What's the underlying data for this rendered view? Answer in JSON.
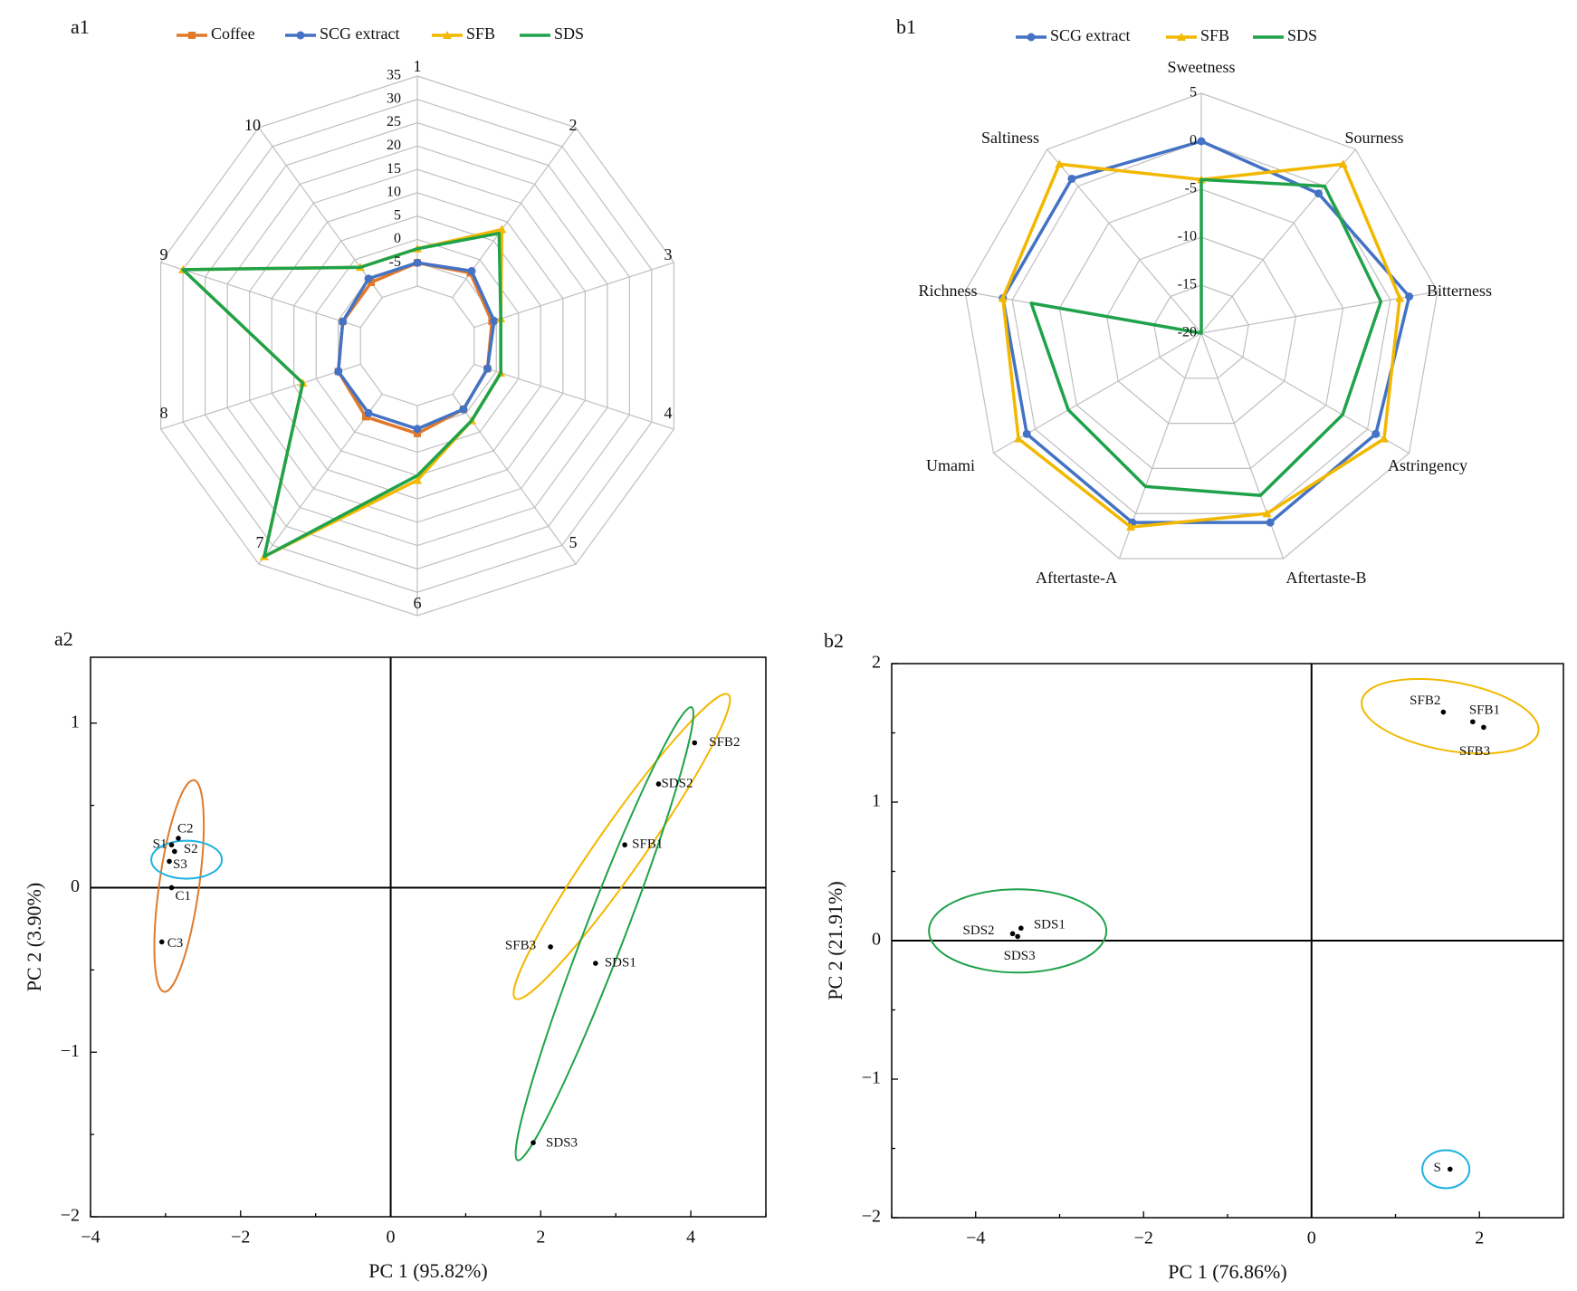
{
  "colors": {
    "coffee": "#E07A2A",
    "scg": "#4472C4",
    "sfb": "#F2B800",
    "sds": "#1FA24A",
    "s_ellipse": "#1EB2E0",
    "grid": "#BFBFBF"
  },
  "chart_data": [
    {
      "panel": "a1",
      "type": "radar",
      "axes": [
        "1",
        "2",
        "3",
        "4",
        "5",
        "6",
        "7",
        "8",
        "9",
        "10"
      ],
      "rticks": [
        "35",
        "30",
        "25",
        "20",
        "15",
        "10",
        "5",
        "0",
        "-5"
      ],
      "rlim": [
        -10,
        35
      ],
      "legend_position": "top",
      "series": [
        {
          "name": "Coffee",
          "color": "#E07A2A",
          "marker": "square",
          "values": [
            -5,
            -3.5,
            -6,
            -7,
            -6,
            -4,
            -4,
            -5,
            -6,
            -6
          ]
        },
        {
          "name": "SCG extract",
          "color": "#4472C4",
          "marker": "circle",
          "values": [
            -5,
            -3,
            -5.5,
            -7,
            -6,
            -5,
            -5,
            -5,
            -6,
            -5
          ]
        },
        {
          "name": "SFB",
          "color": "#F2B800",
          "marker": "triangle",
          "values": [
            -2,
            8,
            -4,
            -4,
            -3,
            6,
            33,
            3,
            30,
            -2
          ]
        },
        {
          "name": "SDS",
          "color": "#1FA24A",
          "marker": "none",
          "values": [
            -2,
            7,
            -4,
            -4,
            -3,
            5,
            33,
            3,
            30,
            -2
          ]
        }
      ]
    },
    {
      "panel": "b1",
      "type": "radar",
      "axes": [
        "Sweetness",
        "Sourness",
        "Bitterness",
        "Astringency",
        "Aftertaste-B",
        "Aftertaste-A",
        "Umami",
        "Richness",
        "Saltiness"
      ],
      "rticks": [
        "5",
        "0",
        "-5",
        "-10",
        "-15",
        "-20"
      ],
      "rlim": [
        -20,
        5
      ],
      "legend_position": "top",
      "series": [
        {
          "name": "SCG extract",
          "color": "#4472C4",
          "marker": "circle",
          "values": [
            0,
            -1,
            2,
            1,
            1,
            1,
            1,
            1,
            1
          ]
        },
        {
          "name": "SFB",
          "color": "#F2B800",
          "marker": "triangle",
          "values": [
            -4,
            3,
            1,
            2,
            0,
            1.5,
            2,
            1,
            3
          ]
        },
        {
          "name": "SDS",
          "color": "#1FA24A",
          "marker": "none",
          "values": [
            -4,
            0,
            -1,
            -3,
            -2,
            -3,
            -4,
            -2,
            -20
          ]
        }
      ]
    },
    {
      "panel": "a2",
      "type": "scatter",
      "xlabel": "PC 1 (95.82%)",
      "ylabel": "PC 2 (3.90%)",
      "xlim": [
        -4,
        5
      ],
      "ylim": [
        -2,
        1.4
      ],
      "xticks": [
        -4,
        -2,
        0,
        2,
        4
      ],
      "yticks": [
        -2,
        -1,
        0,
        1
      ],
      "points": [
        {
          "label": "C1",
          "x": -2.92,
          "y": 0.0
        },
        {
          "label": "C2",
          "x": -2.83,
          "y": 0.3
        },
        {
          "label": "C3",
          "x": -3.05,
          "y": -0.33
        },
        {
          "label": "S1",
          "x": -2.92,
          "y": 0.26
        },
        {
          "label": "S2",
          "x": -2.88,
          "y": 0.22
        },
        {
          "label": "S3",
          "x": -2.95,
          "y": 0.16
        },
        {
          "label": "SFB1",
          "x": 3.12,
          "y": 0.26
        },
        {
          "label": "SFB2",
          "x": 4.05,
          "y": 0.88
        },
        {
          "label": "SFB3",
          "x": 2.13,
          "y": -0.36
        },
        {
          "label": "SDS1",
          "x": 2.73,
          "y": -0.46
        },
        {
          "label": "SDS2",
          "x": 3.57,
          "y": 0.63
        },
        {
          "label": "SDS3",
          "x": 1.9,
          "y": -1.55
        }
      ],
      "groups": [
        {
          "name": "Coffee",
          "color": "#E07A2A",
          "members": [
            "C1",
            "C2",
            "C3"
          ]
        },
        {
          "name": "SCG extract",
          "color": "#1EB2E0",
          "members": [
            "S1",
            "S2",
            "S3"
          ]
        },
        {
          "name": "SFB",
          "color": "#F2B800",
          "members": [
            "SFB1",
            "SFB2",
            "SFB3"
          ]
        },
        {
          "name": "SDS",
          "color": "#1FA24A",
          "members": [
            "SDS1",
            "SDS2",
            "SDS3"
          ]
        }
      ]
    },
    {
      "panel": "b2",
      "type": "scatter",
      "xlabel": "PC 1 (76.86%)",
      "ylabel": "PC 2 (21.91%)",
      "xlim": [
        -5,
        3
      ],
      "ylim": [
        -2,
        2
      ],
      "xticks": [
        -4,
        -2,
        0,
        2
      ],
      "yticks": [
        -2,
        -1,
        0,
        1,
        2
      ],
      "points": [
        {
          "label": "SFB1",
          "x": 1.92,
          "y": 1.58
        },
        {
          "label": "SFB2",
          "x": 1.57,
          "y": 1.65
        },
        {
          "label": "SFB3",
          "x": 2.05,
          "y": 1.54
        },
        {
          "label": "SDS1",
          "x": -3.46,
          "y": 0.09
        },
        {
          "label": "SDS2",
          "x": -3.56,
          "y": 0.05
        },
        {
          "label": "SDS3",
          "x": -3.5,
          "y": 0.03
        },
        {
          "label": "S",
          "x": 1.65,
          "y": -1.65
        }
      ],
      "groups": [
        {
          "name": "SFB",
          "color": "#F2B800",
          "members": [
            "SFB1",
            "SFB2",
            "SFB3"
          ]
        },
        {
          "name": "SDS",
          "color": "#1FA24A",
          "members": [
            "SDS1",
            "SDS2",
            "SDS3"
          ]
        },
        {
          "name": "SCG extract",
          "color": "#1EB2E0",
          "members": [
            "S"
          ]
        }
      ]
    }
  ]
}
